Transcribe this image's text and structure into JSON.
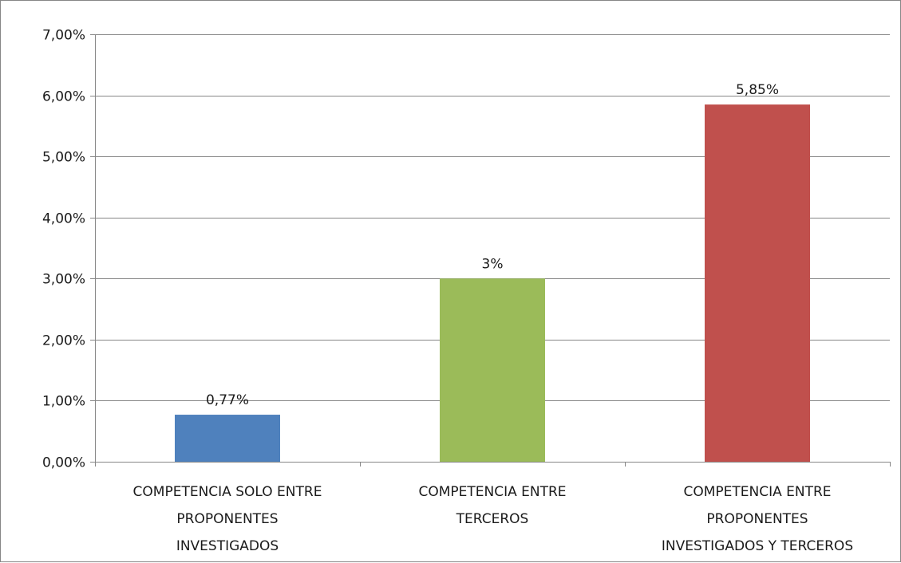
{
  "chart_data": {
    "type": "bar",
    "title": "",
    "xlabel": "",
    "ylabel": "",
    "ylim": [
      0,
      7
    ],
    "yticks": [
      0,
      1,
      2,
      3,
      4,
      5,
      6,
      7
    ],
    "ytick_labels": [
      "0,00%",
      "1,00%",
      "2,00%",
      "3,00%",
      "4,00%",
      "5,00%",
      "6,00%",
      "7,00%"
    ],
    "grid": true,
    "legend": "none",
    "categories": [
      [
        "COMPETENCIA SOLO ENTRE",
        "PROPONENTES",
        "INVESTIGADOS"
      ],
      [
        "COMPETENCIA ENTRE",
        "TERCEROS"
      ],
      [
        "COMPETENCIA ENTRE",
        "PROPONENTES",
        "INVESTIGADOS Y TERCEROS"
      ]
    ],
    "values": [
      0.77,
      3,
      5.85
    ],
    "data_labels": [
      "0,77%",
      "3%",
      "5,85%"
    ],
    "colors": [
      "#4f81bd",
      "#9bbb59",
      "#c0504d"
    ],
    "grid_color": "#868686",
    "axis_color": "#868686"
  }
}
